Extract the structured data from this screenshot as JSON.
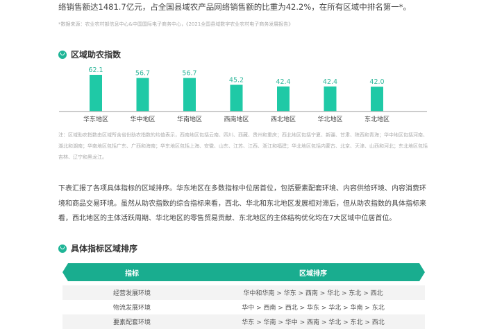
{
  "intro": {
    "text": "络销售额达1481.7亿元，占全国县域农产品网络销售额的比重为42.2%，在所有区域中排名第一*。",
    "source": "*数据来源：农业农村部信息中心&中国国际电子商务中心，《2021全国县域数字农业农村电子商务发展报告》"
  },
  "section1": {
    "title": "区域助农指数"
  },
  "chart_data": {
    "type": "bar",
    "categories": [
      "华东地区",
      "华中地区",
      "华南地区",
      "西南地区",
      "西北地区",
      "华北地区",
      "东北地区"
    ],
    "values": [
      62.1,
      56.7,
      56.7,
      45.2,
      42.4,
      42.4,
      42.0
    ],
    "ylim": [
      0,
      70
    ],
    "color": "#1fc9a6",
    "grid": false
  },
  "chart_note": "注：区域助农指数由区域所含省份助农指数的均值表示，西南地区包括云南、四川、西藏、贵州和重庆；西北地区包括宁夏、新疆、甘肃、陕西和青海；华中地区包括河南、湖北和湖南；华南地区包括广东、广西和海南；华东地区包括上海、安徽、山东、江苏、江西、浙江和福建；华北地区包括内蒙古、北京、天津、山西和河北；东北地区包括吉林、辽宁和黑龙江。",
  "paragraph": "下表汇报了各项具体指标的区域排序。华东地区在多数指标中位居首位，包括要素配套环境、内容供给环境、内容消费环境和商品交易环境。虽然从助农指数的综合指标来看，西北、华北和东北地区发展相对滞后，但从助农指数的具体指标来看，西北地区的主体活跃周期、华北地区的零售贸易贡献、东北地区的主体结构优化均在7大区域中位居首位。",
  "section2": {
    "title": "具体指标区域排序"
  },
  "table": {
    "headers": [
      "指标",
      "区域排序"
    ],
    "rows": [
      [
        "经营发展环境",
        "华中和华南 > 华东 > 西南 > 华北 > 东北 > 西北"
      ],
      [
        "物流发展环境",
        "华中 > 西南 > 西北 > 华东 > 华北 > 华南 > 东北"
      ],
      [
        "要素配套环境",
        "华东 > 华南 > 华中 > 西南 > 华北 > 东北 > 西北"
      ]
    ]
  }
}
